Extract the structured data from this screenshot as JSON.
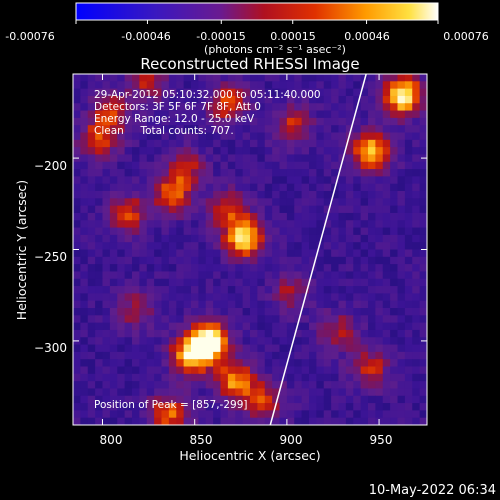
{
  "colorbar": {
    "tick_labels": [
      "-0.00076",
      "-0.00046",
      "-0.00015",
      "0.00015",
      "0.00046",
      "0.00076"
    ],
    "range": [
      -0.00076,
      0.00076
    ],
    "units": "(photons cm⁻² s⁻¹ asec⁻²)"
  },
  "title": "Reconstructed RHESSI Image",
  "annotations": {
    "line1": "29-Apr-2012 05:10:32.000 to 05:11:40.000",
    "line2": "Detectors: 3F 5F 6F 7F 8F, Att 0",
    "line3": "Energy Range: 12.0 - 25.0 keV",
    "line4": "Clean     Total counts: 707.",
    "peak": "Position of Peak = [857,-299]"
  },
  "footer": {
    "timestamp": "10-May-2022 06:34"
  },
  "colors": {
    "background": "#000000",
    "limb_line": "#ffffff",
    "text": "#ffffff"
  },
  "chart_data": {
    "type": "heatmap",
    "title": "Reconstructed RHESSI Image",
    "xlabel": "Heliocentric X (arcsec)",
    "ylabel": "Heliocentric Y (arcsec)",
    "xlim": [
      784,
      976
    ],
    "ylim": [
      -346,
      -154
    ],
    "x_ticks": [
      800,
      850,
      900,
      950
    ],
    "y_ticks": [
      -200,
      -250,
      -300
    ],
    "x_tick_labels": [
      "800",
      "850",
      "900",
      "950"
    ],
    "y_tick_labels": [
      "−200",
      "−250",
      "−300"
    ],
    "colormap": "blue-purple-red-yellow-white",
    "value_range": [
      -0.00076,
      0.00076
    ],
    "peak_position": [
      857,
      -299
    ],
    "sources": [
      {
        "x": 858,
        "y": -300,
        "intensity": 1.0
      },
      {
        "x": 848,
        "y": -308,
        "intensity": 0.8
      },
      {
        "x": 872,
        "y": -322,
        "intensity": 0.7
      },
      {
        "x": 836,
        "y": -340,
        "intensity": 0.6
      },
      {
        "x": 888,
        "y": -333,
        "intensity": 0.5
      },
      {
        "x": 877,
        "y": -244,
        "intensity": 0.85
      },
      {
        "x": 868,
        "y": -228,
        "intensity": 0.5
      },
      {
        "x": 963,
        "y": -166,
        "intensity": 0.95
      },
      {
        "x": 946,
        "y": -196,
        "intensity": 0.8
      },
      {
        "x": 838,
        "y": -220,
        "intensity": 0.6
      },
      {
        "x": 845,
        "y": -205,
        "intensity": 0.4
      },
      {
        "x": 798,
        "y": -190,
        "intensity": 0.5
      },
      {
        "x": 814,
        "y": -231,
        "intensity": 0.5
      },
      {
        "x": 805,
        "y": -175,
        "intensity": 0.45
      },
      {
        "x": 868,
        "y": -170,
        "intensity": 0.55
      },
      {
        "x": 903,
        "y": -182,
        "intensity": 0.45
      },
      {
        "x": 928,
        "y": -295,
        "intensity": 0.4
      },
      {
        "x": 945,
        "y": -315,
        "intensity": 0.45
      },
      {
        "x": 818,
        "y": -283,
        "intensity": 0.35
      },
      {
        "x": 902,
        "y": -273,
        "intensity": 0.35
      },
      {
        "x": 825,
        "y": -159,
        "intensity": 0.4
      }
    ],
    "limb_line": [
      [
        891,
        -346
      ],
      [
        943,
        -154
      ]
    ]
  }
}
